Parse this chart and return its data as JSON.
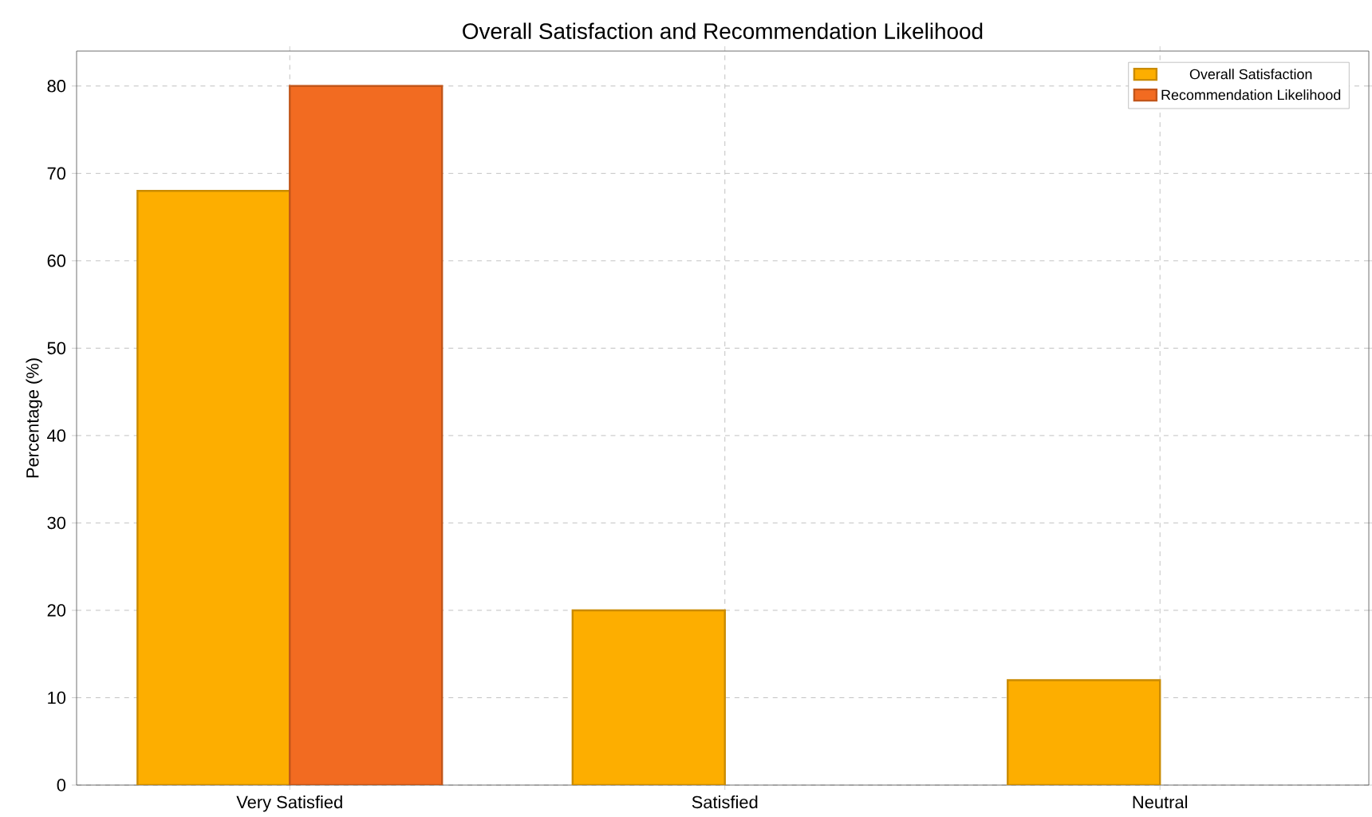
{
  "chart_data": {
    "type": "bar",
    "title": "Overall Satisfaction and Recommendation Likelihood",
    "ylabel": "Percentage (%)",
    "categories": [
      "Very Satisfied",
      "Satisfied",
      "Neutral"
    ],
    "series": [
      {
        "name": "Overall Satisfaction",
        "color": "#fdae00",
        "values": [
          68,
          20,
          12
        ]
      },
      {
        "name": "Recommendation Likelihood",
        "color": "#f26b21",
        "values": [
          80,
          null,
          null
        ]
      }
    ],
    "ylim": [
      0,
      84
    ],
    "yticks": [
      0,
      10,
      20,
      30,
      40,
      50,
      60,
      70,
      80
    ],
    "grid": true,
    "legend": "top right"
  }
}
